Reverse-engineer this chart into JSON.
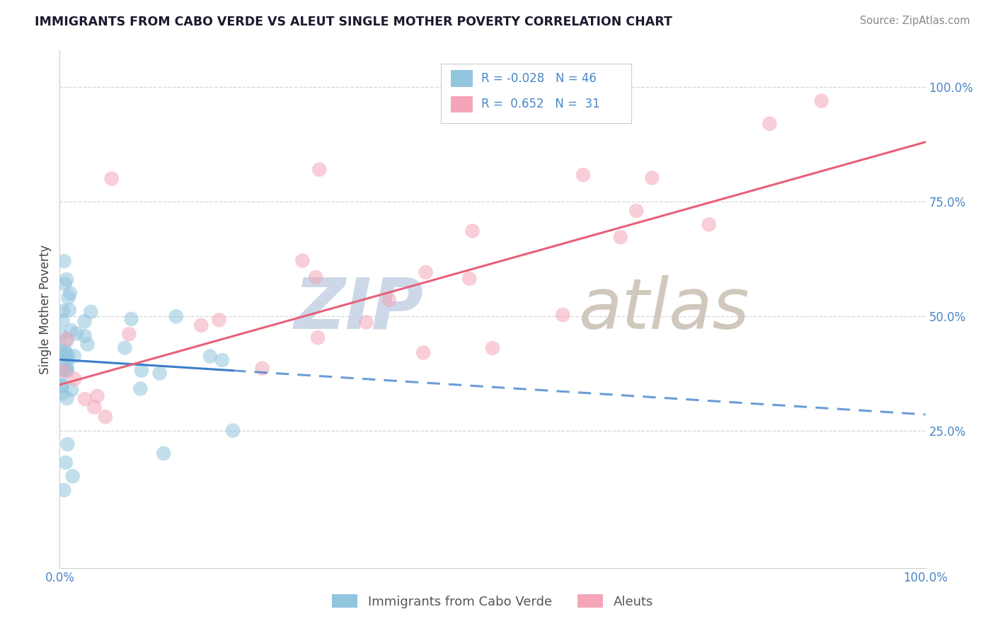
{
  "title": "IMMIGRANTS FROM CABO VERDE VS ALEUT SINGLE MOTHER POVERTY CORRELATION CHART",
  "source": "Source: ZipAtlas.com",
  "ylabel": "Single Mother Poverty",
  "legend_blue_r": "-0.028",
  "legend_blue_n": "46",
  "legend_pink_r": "0.652",
  "legend_pink_n": "31",
  "legend_label_blue": "Immigrants from Cabo Verde",
  "legend_label_pink": "Aleuts",
  "blue_color": "#92c5de",
  "pink_color": "#f4a6b8",
  "blue_line_color": "#3a7dc9",
  "pink_line_color": "#e8607a",
  "title_color": "#1a1a2e",
  "tick_color": "#4a86c8",
  "ylabel_color": "#444444",
  "grid_color": "#cccccc",
  "watermark_zip_color": "#ccd8e8",
  "watermark_atlas_color": "#d0c8bc"
}
